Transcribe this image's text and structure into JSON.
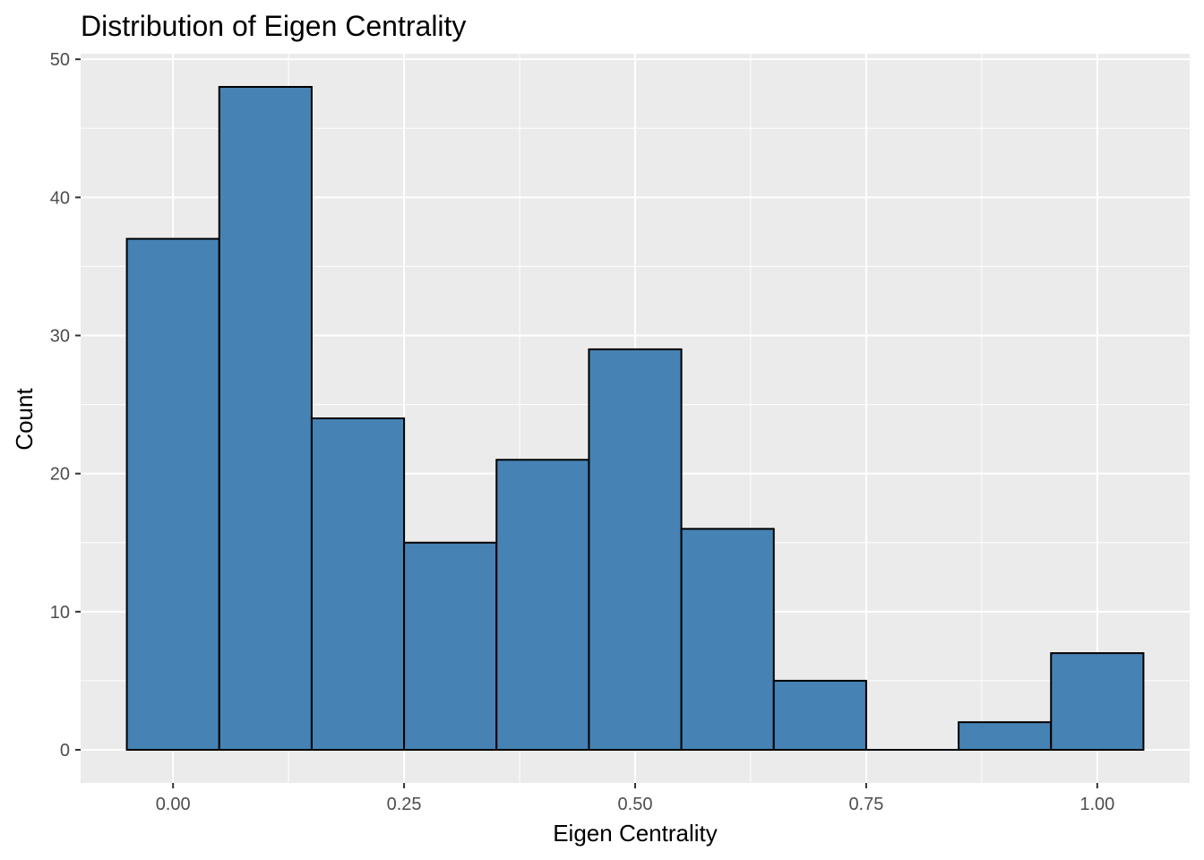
{
  "chart_data": {
    "type": "bar",
    "subtype": "histogram",
    "title": "Distribution of Eigen Centrality",
    "xlabel": "Eigen Centrality",
    "ylabel": "Count",
    "bin_width": 0.1,
    "bin_centers": [
      0.0,
      0.1,
      0.2,
      0.3,
      0.4,
      0.5,
      0.6,
      0.7,
      0.8,
      0.9,
      1.0
    ],
    "values": [
      37,
      48,
      24,
      15,
      21,
      29,
      16,
      5,
      0,
      2,
      7
    ],
    "xlim": [
      -0.1,
      1.1
    ],
    "ylim": [
      -2.4,
      50.4
    ],
    "x_ticks": [
      0.0,
      0.25,
      0.5,
      0.75,
      1.0
    ],
    "x_tick_labels": [
      "0.00",
      "0.25",
      "0.50",
      "0.75",
      "1.00"
    ],
    "y_ticks": [
      0,
      10,
      20,
      30,
      40,
      50
    ],
    "y_tick_labels": [
      "0",
      "10",
      "20",
      "30",
      "40",
      "50"
    ],
    "bar_fill": "#4682B4",
    "bar_outline": "#000000",
    "panel_background": "#EBEBEB",
    "grid_color": "#FFFFFF",
    "grid": true,
    "legend": "none"
  }
}
